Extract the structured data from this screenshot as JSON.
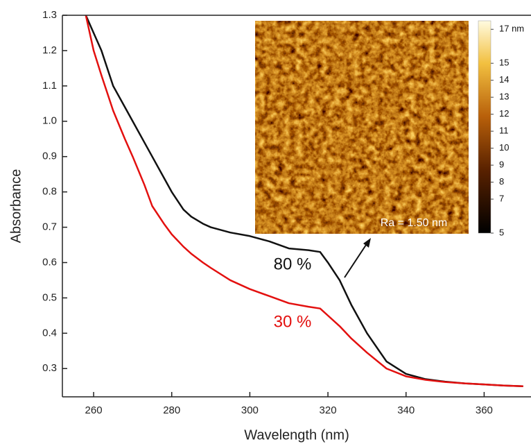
{
  "chart_data": {
    "type": "line",
    "x_label": "Wavelength (nm)",
    "y_label": "Absorbance",
    "x": [
      258,
      260,
      262,
      265,
      268,
      270,
      273,
      275,
      278,
      280,
      283,
      285,
      288,
      290,
      295,
      300,
      305,
      310,
      315,
      318,
      320,
      323,
      326,
      330,
      335,
      340,
      345,
      350,
      355,
      360,
      365,
      370
    ],
    "series": [
      {
        "name": "80 %",
        "color": "#111111",
        "values": [
          1.3,
          1.25,
          1.2,
          1.1,
          1.04,
          1.0,
          0.94,
          0.9,
          0.84,
          0.8,
          0.75,
          0.73,
          0.71,
          0.7,
          0.685,
          0.675,
          0.66,
          0.64,
          0.635,
          0.63,
          0.6,
          0.55,
          0.48,
          0.4,
          0.32,
          0.285,
          0.27,
          0.263,
          0.258,
          0.255,
          0.252,
          0.25
        ]
      },
      {
        "name": "30 %",
        "color": "#e3100f",
        "values": [
          1.3,
          1.2,
          1.13,
          1.03,
          0.95,
          0.9,
          0.82,
          0.76,
          0.71,
          0.68,
          0.645,
          0.625,
          0.6,
          0.585,
          0.55,
          0.525,
          0.505,
          0.485,
          0.475,
          0.47,
          0.45,
          0.42,
          0.385,
          0.345,
          0.3,
          0.278,
          0.268,
          0.262,
          0.258,
          0.255,
          0.252,
          0.25
        ]
      }
    ],
    "xlim": [
      252,
      372
    ],
    "ylim": [
      0.22,
      1.3
    ],
    "xticks": [
      260,
      280,
      300,
      320,
      340,
      360
    ],
    "yticks": [
      0.3,
      0.4,
      0.5,
      0.6,
      0.7,
      0.8,
      0.9,
      {
        "value": 1,
        "label": "1.0"
      },
      1.1,
      1.2,
      1.3
    ],
    "inset_annotation": "Ra = 1.50 nm",
    "colorbar_ticks": [
      {
        "value": 17,
        "label": "17 nm"
      },
      15,
      14,
      13,
      12,
      11,
      10,
      9,
      8,
      7,
      5
    ],
    "colorbar_lim": [
      5,
      17.5
    ]
  }
}
